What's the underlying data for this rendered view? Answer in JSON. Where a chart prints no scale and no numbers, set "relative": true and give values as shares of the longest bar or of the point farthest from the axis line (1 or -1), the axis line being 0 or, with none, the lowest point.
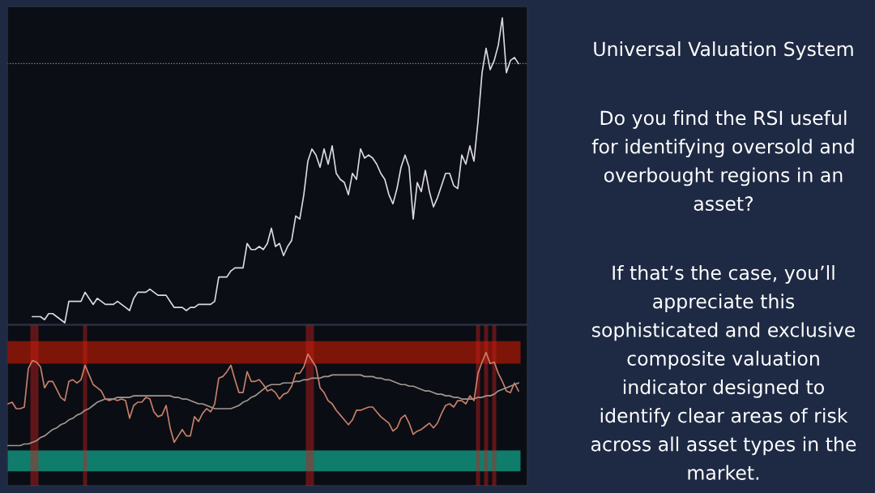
{
  "chart_data": [
    {
      "type": "line",
      "relative": true,
      "categories": [
        null,
        null,
        null,
        null,
        null,
        null,
        null,
        null,
        null,
        null,
        null,
        null,
        null,
        null,
        null,
        null,
        null,
        null,
        null,
        null,
        null,
        null,
        null,
        null,
        null,
        null,
        null,
        null,
        null,
        null,
        null,
        null,
        null,
        null,
        null,
        null,
        null,
        null,
        null,
        null,
        null,
        null,
        null,
        null,
        null,
        null,
        null,
        null,
        null,
        null,
        null,
        null,
        null,
        null,
        null,
        null,
        null,
        null,
        null,
        null,
        null,
        null,
        null,
        null,
        null,
        null,
        null,
        null,
        null,
        null,
        null,
        null,
        null,
        null,
        null,
        null,
        null,
        null,
        null,
        null,
        null,
        null,
        null,
        null,
        null,
        null,
        null,
        null,
        null,
        null,
        null,
        null,
        null,
        null,
        null,
        null,
        null,
        null,
        null,
        null,
        null,
        null,
        null,
        null,
        null,
        null,
        null,
        null,
        null,
        null,
        null,
        null,
        null,
        null,
        null,
        null,
        null,
        null,
        null,
        null,
        null,
        null,
        null,
        null,
        null,
        null,
        null
      ],
      "series": [
        {
          "color": "#d9d9de",
          "values": [
            null,
            null,
            null,
            null,
            null,
            null,
            0.02,
            0.02,
            0.02,
            0.01,
            0.03,
            0.03,
            0.02,
            0.01,
            0,
            0.07,
            0.07,
            0.07,
            0.07,
            0.1,
            0.08,
            0.06,
            0.08,
            0.07,
            0.06,
            0.06,
            0.06,
            0.07,
            0.06,
            0.05,
            0.04,
            0.08,
            0.1,
            0.1,
            0.1,
            0.11,
            0.1,
            0.09,
            0.09,
            0.09,
            0.07,
            0.05,
            0.05,
            0.05,
            0.04,
            0.05,
            0.05,
            0.06,
            0.06,
            0.06,
            0.06,
            0.07,
            0.15,
            0.15,
            0.15,
            0.17,
            0.18,
            0.18,
            0.18,
            0.26,
            0.24,
            0.24,
            0.25,
            0.24,
            0.26,
            0.31,
            0.25,
            0.26,
            0.22,
            0.25,
            0.27,
            0.35,
            0.34,
            0.42,
            0.53,
            0.57,
            0.55,
            0.51,
            0.57,
            0.52,
            0.58,
            0.49,
            0.47,
            0.46,
            0.42,
            0.49,
            0.47,
            0.57,
            0.54,
            0.55,
            0.54,
            0.52,
            0.49,
            0.47,
            0.42,
            0.39,
            0.44,
            0.51,
            0.55,
            0.51,
            0.34,
            0.46,
            0.43,
            0.5,
            0.43,
            0.38,
            0.41,
            0.45,
            0.49,
            0.49,
            0.45,
            0.44,
            0.55,
            0.52,
            0.58,
            0.53,
            0.66,
            0.82,
            0.9,
            0.83,
            0.86,
            0.91,
            1,
            0.82,
            0.86,
            0.87,
            0.85
          ]
        }
      ],
      "ref_lines": [
        {
          "axis": "y",
          "value": 0.85,
          "color": "#8a8f99",
          "line_style": "dotted"
        }
      ]
    },
    {
      "type": "line",
      "relative": true,
      "categories": [
        null,
        null,
        null,
        null,
        null,
        null,
        null,
        null,
        null,
        null,
        null,
        null,
        null,
        null,
        null,
        null,
        null,
        null,
        null,
        null,
        null,
        null,
        null,
        null,
        null,
        null,
        null,
        null,
        null,
        null,
        null,
        null,
        null,
        null,
        null,
        null,
        null,
        null,
        null,
        null,
        null,
        null,
        null,
        null,
        null,
        null,
        null,
        null,
        null,
        null,
        null,
        null,
        null,
        null,
        null,
        null,
        null,
        null,
        null,
        null,
        null,
        null,
        null,
        null,
        null,
        null,
        null,
        null,
        null,
        null,
        null,
        null,
        null,
        null,
        null,
        null,
        null,
        null,
        null,
        null,
        null,
        null,
        null,
        null,
        null,
        null,
        null,
        null,
        null,
        null,
        null,
        null,
        null,
        null,
        null,
        null,
        null,
        null,
        null,
        null,
        null,
        null,
        null,
        null,
        null,
        null,
        null,
        null,
        null,
        null,
        null,
        null,
        null,
        null,
        null,
        null,
        null,
        null,
        null,
        null,
        null,
        null,
        null,
        null,
        null,
        null,
        null
      ],
      "series": [
        {
          "type": "bar",
          "color": "#c8201c",
          "values": [
            null,
            null,
            null,
            null,
            null,
            null,
            1,
            1,
            null,
            null,
            null,
            null,
            null,
            null,
            null,
            null,
            null,
            null,
            null,
            1,
            null,
            null,
            null,
            null,
            null,
            null,
            null,
            null,
            null,
            null,
            null,
            null,
            null,
            null,
            null,
            null,
            null,
            null,
            null,
            null,
            null,
            null,
            null,
            null,
            null,
            null,
            null,
            null,
            null,
            null,
            null,
            null,
            null,
            null,
            null,
            null,
            null,
            null,
            null,
            null,
            null,
            null,
            null,
            null,
            null,
            null,
            null,
            null,
            null,
            null,
            null,
            null,
            null,
            null,
            1,
            1,
            null,
            null,
            null,
            null,
            null,
            null,
            null,
            null,
            null,
            null,
            null,
            null,
            null,
            null,
            null,
            null,
            null,
            null,
            null,
            null,
            null,
            null,
            null,
            null,
            null,
            null,
            null,
            null,
            null,
            null,
            null,
            null,
            null,
            null,
            null,
            null,
            null,
            null,
            null,
            null,
            1,
            null,
            1,
            null,
            1,
            null,
            null,
            null,
            null,
            null,
            null
          ]
        },
        {
          "color": "#a09890",
          "values": [
            0.25,
            0.25,
            0.25,
            0.25,
            0.26,
            0.26,
            0.27,
            0.28,
            0.3,
            0.31,
            0.33,
            0.35,
            0.36,
            0.38,
            0.39,
            0.41,
            0.42,
            0.44,
            0.45,
            0.47,
            0.48,
            0.5,
            0.52,
            0.53,
            0.54,
            0.54,
            0.54,
            0.55,
            0.55,
            0.55,
            0.55,
            0.56,
            0.56,
            0.56,
            0.56,
            0.56,
            0.56,
            0.56,
            0.56,
            0.56,
            0.56,
            0.55,
            0.55,
            0.54,
            0.54,
            0.53,
            0.52,
            0.51,
            0.51,
            0.5,
            0.49,
            0.48,
            0.48,
            0.48,
            0.48,
            0.48,
            0.49,
            0.5,
            0.52,
            0.53,
            0.55,
            0.56,
            0.58,
            0.6,
            0.62,
            0.63,
            0.63,
            0.63,
            0.64,
            0.64,
            0.64,
            0.65,
            0.65,
            0.66,
            0.66,
            0.67,
            0.67,
            0.67,
            0.68,
            0.68,
            0.69,
            0.69,
            0.69,
            0.69,
            0.69,
            0.69,
            0.69,
            0.69,
            0.68,
            0.68,
            0.68,
            0.67,
            0.67,
            0.66,
            0.66,
            0.65,
            0.64,
            0.63,
            0.63,
            0.62,
            0.62,
            0.61,
            0.6,
            0.59,
            0.59,
            0.58,
            0.57,
            0.57,
            0.56,
            0.56,
            0.55,
            0.55,
            0.54,
            0.54,
            0.54,
            0.54,
            0.55,
            0.55,
            0.56,
            0.56,
            0.57,
            0.59,
            0.6,
            0.61,
            0.62,
            0.63,
            0.64
          ]
        },
        {
          "color": "#c8806a",
          "values": [
            0.51,
            0.52,
            0.48,
            0.48,
            0.49,
            0.73,
            0.78,
            0.77,
            0.74,
            0.61,
            0.65,
            0.65,
            0.6,
            0.55,
            0.53,
            0.65,
            0.66,
            0.64,
            0.66,
            0.75,
            0.69,
            0.63,
            0.61,
            0.59,
            0.54,
            0.53,
            0.54,
            0.53,
            0.54,
            0.53,
            0.42,
            0.5,
            0.52,
            0.52,
            0.55,
            0.54,
            0.46,
            0.43,
            0.44,
            0.5,
            0.36,
            0.27,
            0.31,
            0.35,
            0.31,
            0.31,
            0.43,
            0.4,
            0.45,
            0.48,
            0.46,
            0.51,
            0.67,
            0.68,
            0.71,
            0.75,
            0.66,
            0.58,
            0.58,
            0.71,
            0.65,
            0.65,
            0.66,
            0.63,
            0.59,
            0.6,
            0.58,
            0.54,
            0.57,
            0.58,
            0.62,
            0.7,
            0.7,
            0.74,
            0.82,
            0.78,
            0.74,
            0.61,
            0.58,
            0.53,
            0.51,
            0.47,
            0.44,
            0.41,
            0.38,
            0.41,
            0.47,
            0.47,
            0.48,
            0.49,
            0.49,
            0.46,
            0.43,
            0.41,
            0.39,
            0.34,
            0.36,
            0.42,
            0.44,
            0.39,
            0.32,
            0.34,
            0.35,
            0.37,
            0.39,
            0.36,
            0.39,
            0.45,
            0.5,
            0.51,
            0.49,
            0.53,
            0.53,
            0.51,
            0.56,
            0.53,
            0.7,
            0.77,
            0.83,
            0.76,
            0.77,
            0.7,
            0.65,
            0.59,
            0.58,
            0.64,
            0.59
          ]
        }
      ],
      "bands": [
        {
          "axis": "y",
          "from": 0.76,
          "to": 0.9,
          "color": "#7e1509"
        },
        {
          "axis": "y",
          "from": 0.09,
          "to": 0.22,
          "color": "#0f7c6c"
        }
      ]
    },
    {
      "type": "other",
      "title": "Universal Valuation System",
      "annotations": [
        "Do you find the RSI useful\nfor identifying oversold and\noverbought regions in an\nasset?",
        "If that’s the case, you’ll\nappreciate this\nsophisticated and exclusive\ncomposite valuation\nindicator designed to\nidentify clear areas of risk\nacross all asset types in the\nmarket."
      ]
    }
  ]
}
